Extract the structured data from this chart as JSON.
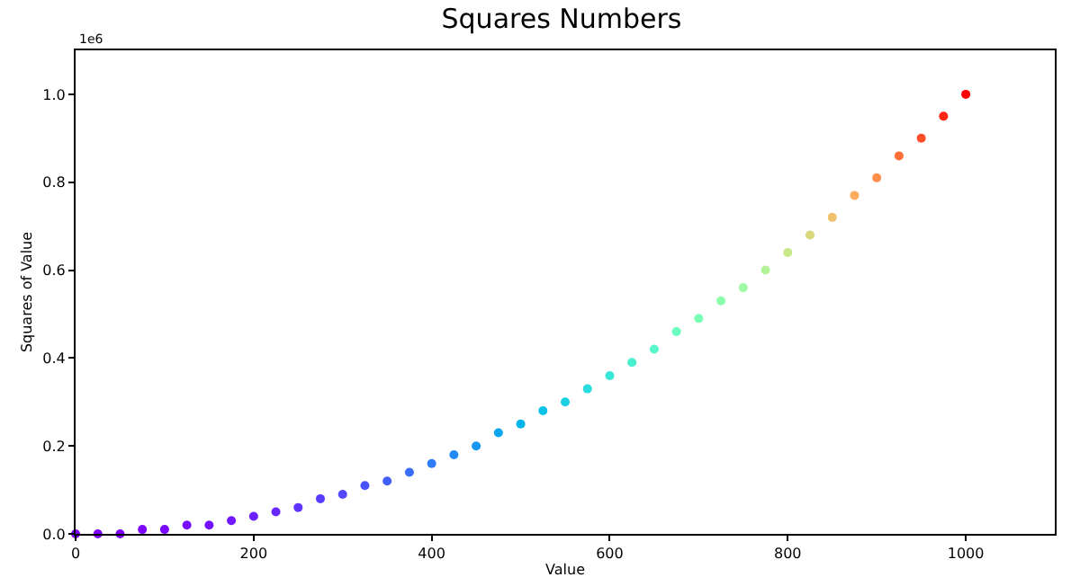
{
  "chart_data": {
    "type": "scatter",
    "title": "Squares Numbers",
    "xlabel": "Value",
    "ylabel": "Squares of Value",
    "x": [
      0,
      25,
      50,
      75,
      100,
      125,
      150,
      175,
      200,
      225,
      250,
      275,
      300,
      325,
      350,
      375,
      400,
      425,
      450,
      475,
      500,
      525,
      550,
      575,
      600,
      625,
      650,
      675,
      700,
      725,
      750,
      775,
      800,
      825,
      850,
      875,
      900,
      925,
      950,
      975,
      1000
    ],
    "values": [
      0,
      0,
      0,
      0.01,
      0.01,
      0.02,
      0.02,
      0.03,
      0.04,
      0.05,
      0.06,
      0.08,
      0.09,
      0.11,
      0.12,
      0.14,
      0.16,
      0.18,
      0.2,
      0.23,
      0.25,
      0.28,
      0.3,
      0.33,
      0.36,
      0.39,
      0.42,
      0.46,
      0.49,
      0.53,
      0.56,
      0.6,
      0.64,
      0.68,
      0.72,
      0.77,
      0.81,
      0.86,
      0.9,
      0.95,
      1
    ],
    "colors": [
      "#8000ff",
      "#7f01ff",
      "#7e02ff",
      "#7d05ff",
      "#7a08ff",
      "#780cff",
      "#7412ff",
      "#7018ff",
      "#6b20fe",
      "#6628fe",
      "#6032fe",
      "#593cfd",
      "#5247fc",
      "#4a53fb",
      "#4160fa",
      "#386df9",
      "#2e7bf7",
      "#2389f5",
      "#1897f2",
      "#0ca5ef",
      "#00b4eb",
      "#0dc2e7",
      "#1bd0e3",
      "#29dcdd",
      "#38e7d7",
      "#48f0d0",
      "#58f7c9",
      "#69fcc0",
      "#7affb7",
      "#8cfeac",
      "#9ffaa2",
      "#b3f296",
      "#c7e789",
      "#dbd77b",
      "#f1c26d",
      "#ffab5c",
      "#ff8f4b",
      "#ff7039",
      "#ff4d27",
      "#ff2714",
      "#ff0000"
    ],
    "marker": "circle",
    "xlim": [
      0,
      1100
    ],
    "ylim": [
      0,
      1.1
    ],
    "xticks": [
      0,
      200,
      400,
      600,
      800,
      1000
    ],
    "yticks": [
      {
        "value": 0,
        "label": "0.0"
      },
      0.2,
      0.4,
      0.6,
      0.8,
      {
        "value": 1,
        "label": "1.0"
      }
    ],
    "annotations": [
      "1e6"
    ]
  }
}
